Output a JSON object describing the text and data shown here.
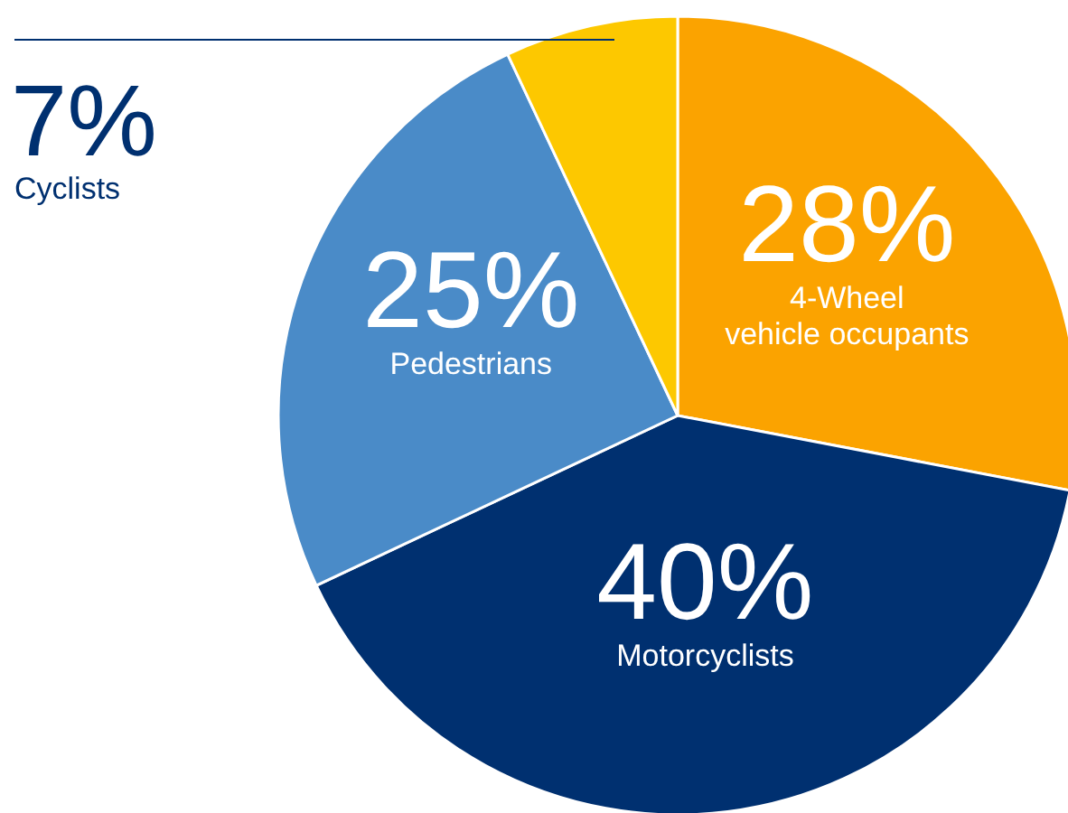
{
  "chart_data": {
    "type": "pie",
    "categories": [
      "4-Wheel\nvehicle occupants",
      "Motorcyclists",
      "Pedestrians",
      "Cyclists"
    ],
    "values": [
      28,
      40,
      25,
      7
    ],
    "value_labels": [
      "28%",
      "40%",
      "25%",
      "7%"
    ],
    "colors": [
      "#fba300",
      "#003070",
      "#4a8bc8",
      "#fdc800"
    ]
  }
}
